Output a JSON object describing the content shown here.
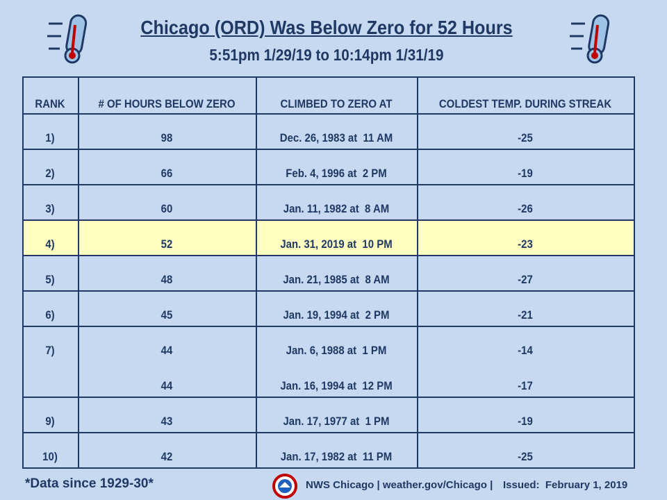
{
  "header": {
    "title": "Chicago (ORD) Was Below Zero for 52 Hours",
    "subtitle": "5:51pm 1/29/19 to 10:14pm 1/31/19"
  },
  "table": {
    "columns": [
      "RANK",
      "# OF HOURS BELOW ZERO",
      "CLIMBED TO ZERO AT",
      "COLDEST TEMP. DURING STREAK"
    ],
    "highlight_row": 3,
    "rows": [
      {
        "rank": "1)",
        "hours": 98,
        "climbed": "Dec. 26, 1983 at  11 AM",
        "coldest": -25
      },
      {
        "rank": "2)",
        "hours": 66,
        "climbed": "Feb. 4, 1996 at  2 PM",
        "coldest": -19
      },
      {
        "rank": "3)",
        "hours": 60,
        "climbed": "Jan. 11, 1982 at  8 AM",
        "coldest": -26
      },
      {
        "rank": "4)",
        "hours": 52,
        "climbed": "Jan. 31, 2019 at  10 PM",
        "coldest": -23
      },
      {
        "rank": "5)",
        "hours": 48,
        "climbed": "Jan. 21, 1985 at  8 AM",
        "coldest": -27
      },
      {
        "rank": "6)",
        "hours": 45,
        "climbed": "Jan. 19, 1994 at  2 PM",
        "coldest": -21
      },
      {
        "rank": "7)",
        "hours": 44,
        "climbed": "Jan. 6, 1988 at  1 PM",
        "coldest": -14
      },
      {
        "hours": 44,
        "climbed": "Jan. 16, 1994 at  12 PM",
        "coldest": -17
      },
      {
        "rank": "9)",
        "hours": 43,
        "climbed": "Jan. 17, 1977 at  1 PM",
        "coldest": -19
      },
      {
        "rank": "10)",
        "hours": 42,
        "climbed": "Jan. 17, 1982 at  11 PM",
        "coldest": -25
      }
    ]
  },
  "footer": {
    "note": "*Data since 1929-30*",
    "credit": "NWS Chicago | weather.gov/Chicago |",
    "issued": "Issued:  February 1, 2019"
  }
}
